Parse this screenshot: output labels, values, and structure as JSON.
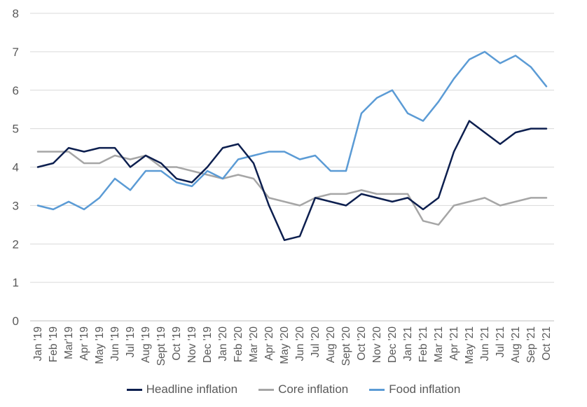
{
  "chart_data": {
    "type": "line",
    "title": "",
    "xlabel": "",
    "ylabel": "",
    "ylim": [
      0,
      8
    ],
    "yticks": [
      0,
      1,
      2,
      3,
      4,
      5,
      6,
      7,
      8
    ],
    "grid": "horizontal",
    "legend_position": "bottom",
    "categories": [
      "Jan '19",
      "Feb '19",
      "Mar'19",
      "Apr '19",
      "May '19",
      "Jun '19",
      "Jul '19",
      "Aug '19",
      "Sept '19",
      "Oct '19",
      "Nov '19",
      "Dec '19",
      "Jan '20",
      "Feb '20",
      "Mar '20",
      "Apr '20",
      "May '20",
      "Jun '20",
      "Jul '20",
      "Aug '20",
      "Sept '20",
      "Oct '20",
      "Nov '20",
      "Dec '20",
      "Jan '21",
      "Feb '21",
      "Mar '21",
      "Apr '21",
      "May '21",
      "Jun '21",
      "Jul '21",
      "Aug '21",
      "Sep '21",
      "Oct '21"
    ],
    "series": [
      {
        "name": "Headline inflation",
        "color": "#0d1f4f",
        "values": [
          4.0,
          4.1,
          4.5,
          4.4,
          4.5,
          4.5,
          4.0,
          4.3,
          4.1,
          3.7,
          3.6,
          4.0,
          4.5,
          4.6,
          4.1,
          3.0,
          2.1,
          2.2,
          3.2,
          3.1,
          3.0,
          3.3,
          3.2,
          3.1,
          3.2,
          2.9,
          3.2,
          4.4,
          5.2,
          4.9,
          4.6,
          4.9,
          5.0,
          5.0
        ]
      },
      {
        "name": "Core inflation",
        "color": "#a6a6a6",
        "values": [
          4.4,
          4.4,
          4.4,
          4.1,
          4.1,
          4.3,
          4.2,
          4.3,
          4.0,
          4.0,
          3.9,
          3.8,
          3.7,
          3.8,
          3.7,
          3.2,
          3.1,
          3.0,
          3.2,
          3.3,
          3.3,
          3.4,
          3.3,
          3.3,
          3.3,
          2.6,
          2.5,
          3.0,
          3.1,
          3.2,
          3.0,
          3.1,
          3.2,
          3.2
        ]
      },
      {
        "name": "Food inflation",
        "color": "#5b9bd5",
        "values": [
          3.0,
          2.9,
          3.1,
          2.9,
          3.2,
          3.7,
          3.4,
          3.9,
          3.9,
          3.6,
          3.5,
          3.9,
          3.7,
          4.2,
          4.3,
          4.4,
          4.4,
          4.2,
          4.3,
          3.9,
          3.9,
          5.4,
          5.8,
          6.0,
          5.4,
          5.2,
          5.7,
          6.3,
          6.8,
          7.0,
          6.7,
          6.9,
          6.6,
          6.1
        ]
      }
    ]
  }
}
